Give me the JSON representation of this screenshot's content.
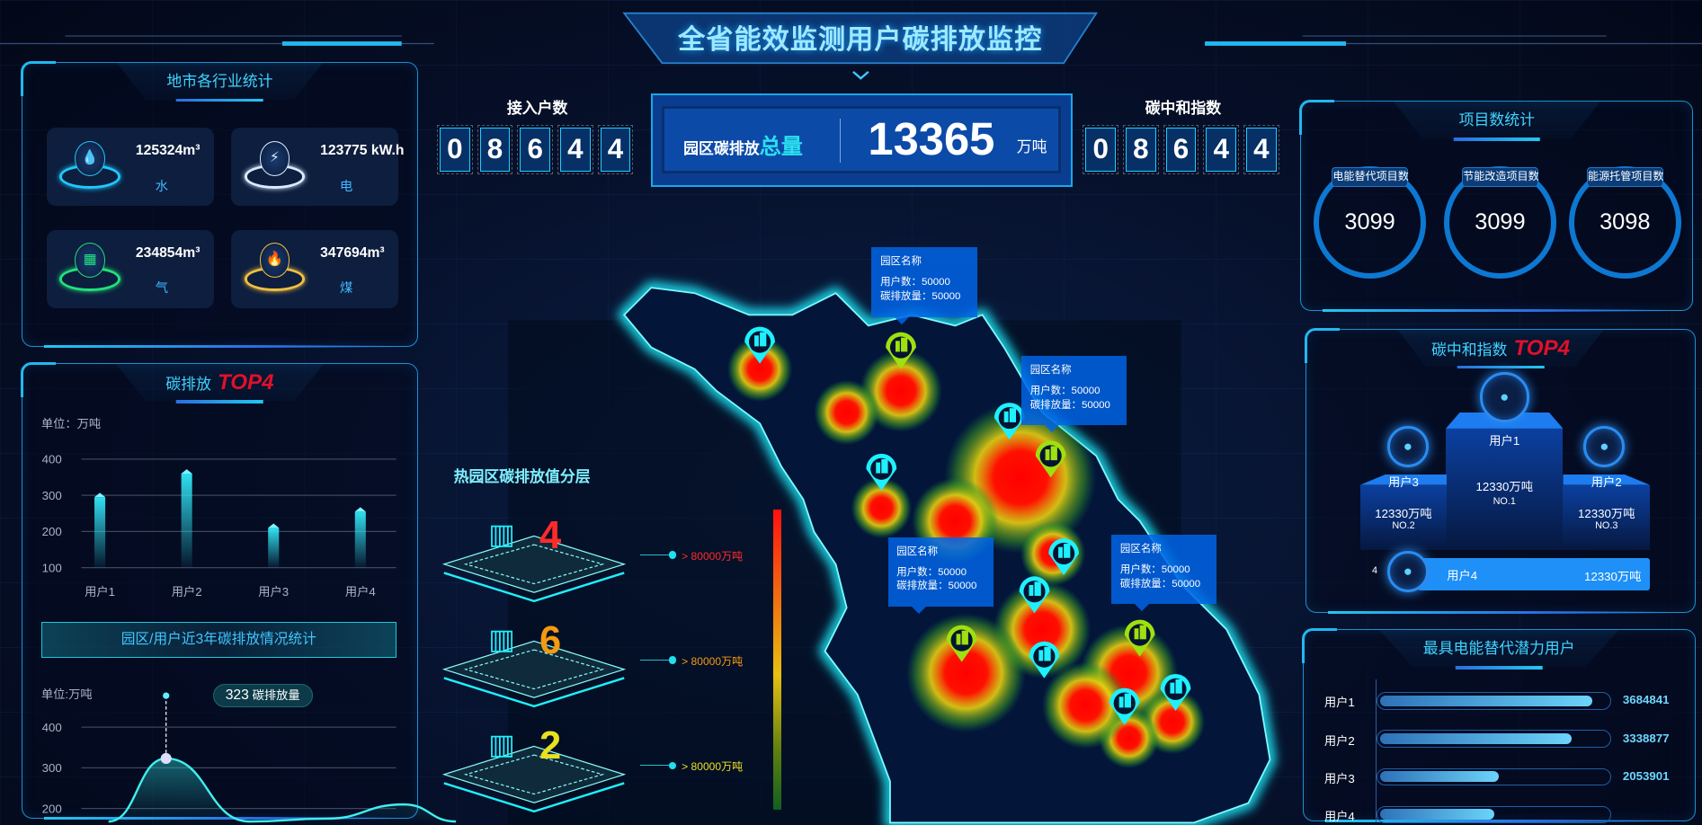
{
  "header": {
    "title": "全省能效监测用户碳排放监控"
  },
  "industry": {
    "title": "地市各行业统计",
    "items": [
      {
        "value": "125324m³",
        "label": "水",
        "icon": "water-drop-icon",
        "color": "#1fc8ff"
      },
      {
        "value": "123775 kW.h",
        "label": "电",
        "icon": "lightning-icon",
        "color": "#d8ecff"
      },
      {
        "value": "234854m³",
        "label": "气",
        "icon": "gas-icon",
        "color": "#22e07a"
      },
      {
        "value": "347694m³",
        "label": "煤",
        "icon": "flame-icon",
        "color": "#f0c040"
      }
    ]
  },
  "emission_top4": {
    "title": "碳排放",
    "badge": "TOP4",
    "unit": "单位：万吨",
    "chart_data": {
      "type": "bar",
      "categories": [
        "用户1",
        "用户2",
        "用户3",
        "用户4"
      ],
      "values": [
        295,
        360,
        210,
        255
      ],
      "ylim": [
        100,
        400
      ],
      "yticks": [
        "400",
        "300",
        "200",
        "100"
      ],
      "ylabel": "单位：万吨"
    }
  },
  "trend": {
    "banner": "园区/用户近3年碳排放情况统计",
    "unit": "单位:万吨",
    "tooltip_value": "323",
    "tooltip_label": "碳排放量",
    "chart_data": {
      "type": "area",
      "values": [
        110,
        323,
        165,
        175,
        210,
        110
      ],
      "ylim": [
        100,
        400
      ],
      "yticks": [
        "400",
        "300",
        "200"
      ],
      "ylabel": "单位:万吨",
      "highlight": {
        "value": 323,
        "label": "碳排放量"
      }
    }
  },
  "counters": {
    "users": {
      "label": "接入户数",
      "digits": [
        "0",
        "8",
        "6",
        "4",
        "4"
      ]
    },
    "total": {
      "label_a": "园区碳排放",
      "label_b": "总量",
      "value": "13365",
      "unit": "万吨"
    },
    "neutral": {
      "label": "碳中和指数",
      "digits": [
        "0",
        "8",
        "6",
        "4",
        "4"
      ]
    }
  },
  "heat_layers": {
    "title": "热园区碳排放值分层",
    "levels": [
      {
        "count": "4",
        "text": "> 80000万吨",
        "color": "#ff2a2a"
      },
      {
        "count": "6",
        "text": "> 80000万吨",
        "color": "#f39a10"
      },
      {
        "count": "2",
        "text": "> 80000万吨",
        "color": "#e8e020"
      }
    ]
  },
  "map": {
    "tooltips": [
      {
        "name": "园区名称",
        "users": "用户数：50000",
        "emission": "碳排放量：50000"
      },
      {
        "name": "园区名称",
        "users": "用户数：50000",
        "emission": "碳排放量：50000"
      },
      {
        "name": "园区名称",
        "users": "用户数：50000",
        "emission": "碳排放量：50000"
      },
      {
        "name": "园区名称",
        "users": "用户数：50000",
        "emission": "碳排放量：50000"
      }
    ]
  },
  "projects": {
    "title": "项目数统计",
    "items": [
      {
        "label": "电能替代项目数",
        "value": "3099"
      },
      {
        "label": "节能改造项目数",
        "value": "3099"
      },
      {
        "label": "能源托管项目数",
        "value": "3098"
      }
    ]
  },
  "neutral_top4": {
    "title": "碳中和指数",
    "badge": "TOP4",
    "first": {
      "name": "用户1",
      "value": "12330万吨",
      "rank": "NO.1"
    },
    "second": {
      "name": "用户3",
      "value": "12330万吨",
      "rank": "NO.2"
    },
    "third": {
      "name": "用户2",
      "value": "12330万吨",
      "rank": "NO.3"
    },
    "fourth": {
      "rank": "4",
      "name": "用户4",
      "value": "12330万吨"
    }
  },
  "potential": {
    "title": "最具电能替代潜力用户",
    "rows": [
      {
        "name": "用户1",
        "value": "3684841",
        "fill": 0.93
      },
      {
        "name": "用户2",
        "value": "3338877",
        "fill": 0.84
      },
      {
        "name": "用户3",
        "value": "2053901",
        "fill": 0.52
      },
      {
        "name": "用户4",
        "fill": 0.5
      }
    ]
  }
}
